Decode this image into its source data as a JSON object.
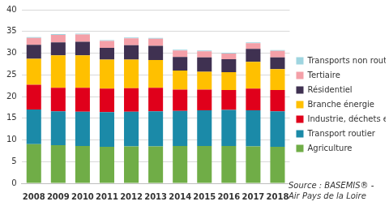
{
  "chart_data": {
    "type": "bar",
    "stacked": true,
    "categories": [
      "2008",
      "2009",
      "2010",
      "2011",
      "2012",
      "2013",
      "2014",
      "2015",
      "2016",
      "2017",
      "2018"
    ],
    "series": [
      {
        "name": "Agriculture",
        "color": "#70ad47",
        "values": [
          9.0,
          8.8,
          8.6,
          8.4,
          8.5,
          8.5,
          8.6,
          8.6,
          8.6,
          8.5,
          8.4
        ]
      },
      {
        "name": "Transport routier",
        "color": "#1b8aa8",
        "values": [
          8.0,
          7.8,
          7.9,
          8.0,
          8.0,
          8.1,
          8.1,
          8.2,
          8.3,
          8.3,
          8.2
        ]
      },
      {
        "name": "Industrie, déchets et BTP",
        "color": "#e0001b",
        "values": [
          5.7,
          5.4,
          5.5,
          5.4,
          5.4,
          5.4,
          4.9,
          4.8,
          4.6,
          5.0,
          4.9
        ]
      },
      {
        "name": "Branche énergie",
        "color": "#ffc000",
        "values": [
          6.0,
          7.5,
          7.5,
          6.7,
          6.6,
          6.4,
          4.4,
          4.1,
          4.1,
          6.2,
          4.8
        ]
      },
      {
        "name": "Résidentiel",
        "color": "#3f3151",
        "values": [
          3.2,
          3.0,
          3.1,
          2.7,
          3.3,
          3.3,
          3.1,
          3.3,
          3.0,
          3.0,
          2.7
        ]
      },
      {
        "name": "Tertiaire",
        "color": "#f4a0a8",
        "values": [
          1.6,
          1.7,
          1.7,
          1.6,
          1.6,
          1.6,
          1.5,
          1.4,
          1.3,
          1.3,
          1.5
        ]
      },
      {
        "name": "Transports non routier",
        "color": "#9fd5e0",
        "values": [
          0.2,
          0.2,
          0.2,
          0.2,
          0.2,
          0.2,
          0.2,
          0.2,
          0.2,
          0.2,
          0.2
        ]
      }
    ],
    "ylim": [
      0,
      40
    ],
    "yticks": [
      0,
      5,
      10,
      15,
      20,
      25,
      30,
      35,
      40
    ],
    "grid": true,
    "legend": "right",
    "annotation": "Source : BASEMIS® - Air Pays de la Loire"
  }
}
